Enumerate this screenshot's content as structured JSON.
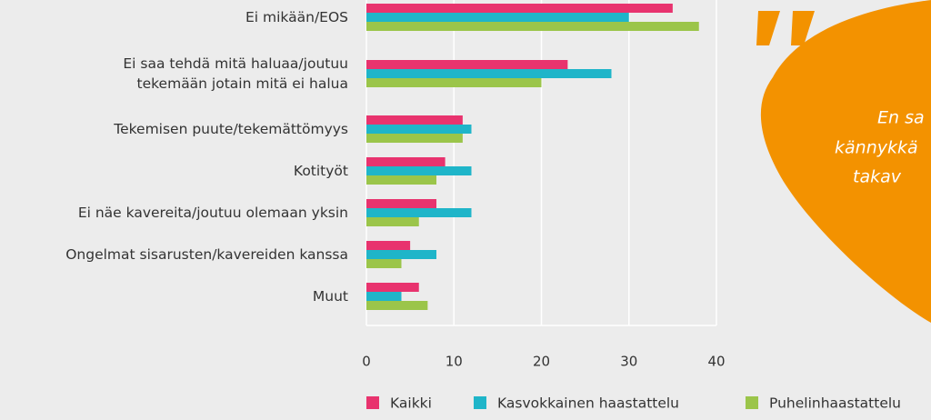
{
  "chart_data": {
    "type": "bar",
    "orientation": "horizontal",
    "categories": [
      "Ei mikään/EOS",
      "Ei saa tehdä mitä haluaa/joutuu\ntekemään jotain mitä ei halua",
      "Tekemisen puute/tekemättömyys",
      "Kotityöt",
      "Ei näe kavereita/joutuu olemaan yksin",
      "Ongelmat sisarusten/kavereiden kanssa",
      "Muut"
    ],
    "series": [
      {
        "name": "Kaikki",
        "color": "#e8336e",
        "values": [
          35,
          23,
          11,
          9,
          8,
          5,
          6
        ]
      },
      {
        "name": "Kasvokkainen haastattelu",
        "color": "#1fb5c9",
        "values": [
          30,
          28,
          12,
          12,
          12,
          8,
          4
        ]
      },
      {
        "name": "Puhelinhaastattelu",
        "color": "#9bc54a",
        "values": [
          38,
          20,
          11,
          8,
          6,
          4,
          7
        ]
      }
    ],
    "xlim": [
      0,
      40
    ],
    "xticks": [
      0,
      10,
      20,
      30,
      40
    ],
    "grid": true,
    "legend": "bottom"
  },
  "quote": {
    "lines": [
      "En sa",
      "kännykkä",
      "takav"
    ],
    "color": "#f39200"
  }
}
